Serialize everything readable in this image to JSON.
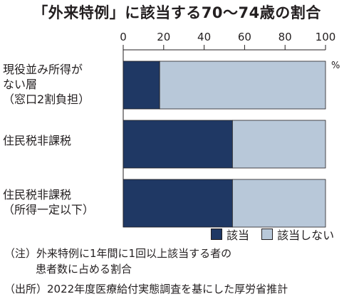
{
  "chart_data": {
    "type": "bar",
    "orientation": "horizontal",
    "stacked": true,
    "title": "「外来特例」に該当する70〜74歳の割合",
    "unit": "%",
    "xlim": [
      0,
      100
    ],
    "ticks": [
      0,
      20,
      40,
      60,
      80,
      100
    ],
    "categories": [
      "現役並み所得が\nない層\n（窓口2割負担）",
      "住民税非課税",
      "住民税非課税\n（所得一定以下）"
    ],
    "series": [
      {
        "name": "該当",
        "values": [
          18,
          54,
          54
        ],
        "color": "#1f3864"
      },
      {
        "name": "該当しない",
        "values": [
          82,
          46,
          46
        ],
        "color": "#b8c8d9"
      }
    ],
    "grid": false,
    "legend_position": "bottom-right"
  },
  "notes": {
    "note_1": "（注）外来特例に1年間に1回以上該当する者の",
    "note_2": "患者数に占める割合",
    "source": "（出所）2022年度医療給付実態調査を基にした厚労省推計"
  }
}
